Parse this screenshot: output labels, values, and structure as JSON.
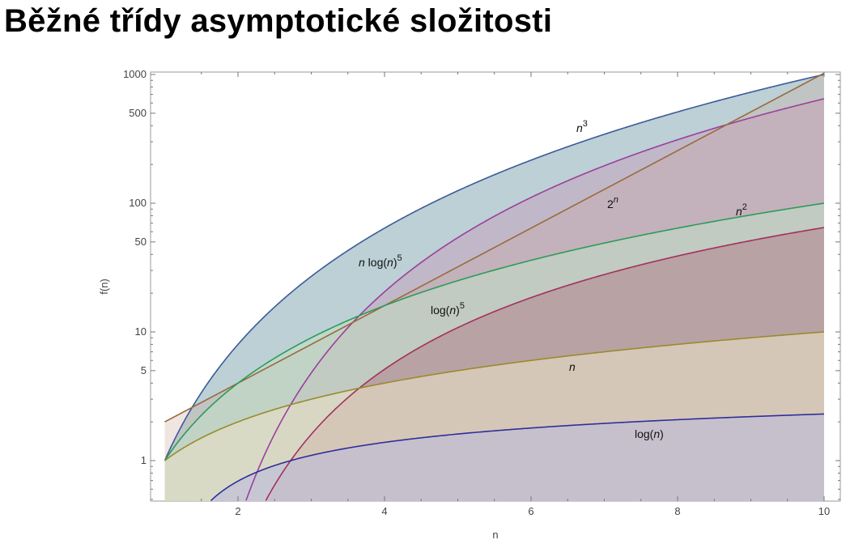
{
  "title": "Běžné třídy asymptotické složitosti",
  "chart_data": {
    "type": "line",
    "xlabel": "n",
    "ylabel": "f(n)",
    "xlim": [
      0.9,
      10.2
    ],
    "ylim": [
      0.4,
      1000
    ],
    "y_scale": "log",
    "x_ticks": [
      2,
      4,
      6,
      8,
      10
    ],
    "y_ticks": [
      1,
      5,
      10,
      50,
      100,
      500,
      1000
    ],
    "filled": true,
    "grid": false,
    "series": [
      {
        "name": "n³",
        "label_base": "n",
        "label_sup": "3",
        "function": "n^3",
        "color": "#3b5b9a",
        "fill": "#5f8f9a",
        "fill_opacity": 0.42
      },
      {
        "name": "n log(n)⁵",
        "label_base": "n log(n)",
        "label_sup": "5",
        "function": "n*ln(n)^5",
        "color": "#9b3f9c",
        "fill": "#c78fb6",
        "fill_opacity": 0.38
      },
      {
        "name": "2ⁿ",
        "label_base": "2",
        "label_sup": "n",
        "function": "2^n",
        "color": "#9a6a3a",
        "fill": "#c9a89a",
        "fill_opacity": 0.3
      },
      {
        "name": "n²",
        "label_base": "n",
        "label_sup": "2",
        "function": "n^2",
        "color": "#2e9a5a",
        "fill": "#bfe0c6",
        "fill_opacity": 0.55
      },
      {
        "name": "log(n)⁵",
        "label_base": "log(n)",
        "label_sup": "5",
        "function": "ln(n)^5",
        "color": "#a3305f",
        "fill": "#b07a85",
        "fill_opacity": 0.5
      },
      {
        "name": "n",
        "label_base": "n",
        "label_sup": "",
        "function": "n",
        "color": "#9a8a2e",
        "fill": "#e7e0c4",
        "fill_opacity": 0.6
      },
      {
        "name": "log(n)",
        "label_base": "log(n)",
        "label_sup": "",
        "function": "ln(n)",
        "color": "#2e2e9a",
        "fill": "#b9b9e0",
        "fill_opacity": 0.55
      }
    ]
  }
}
